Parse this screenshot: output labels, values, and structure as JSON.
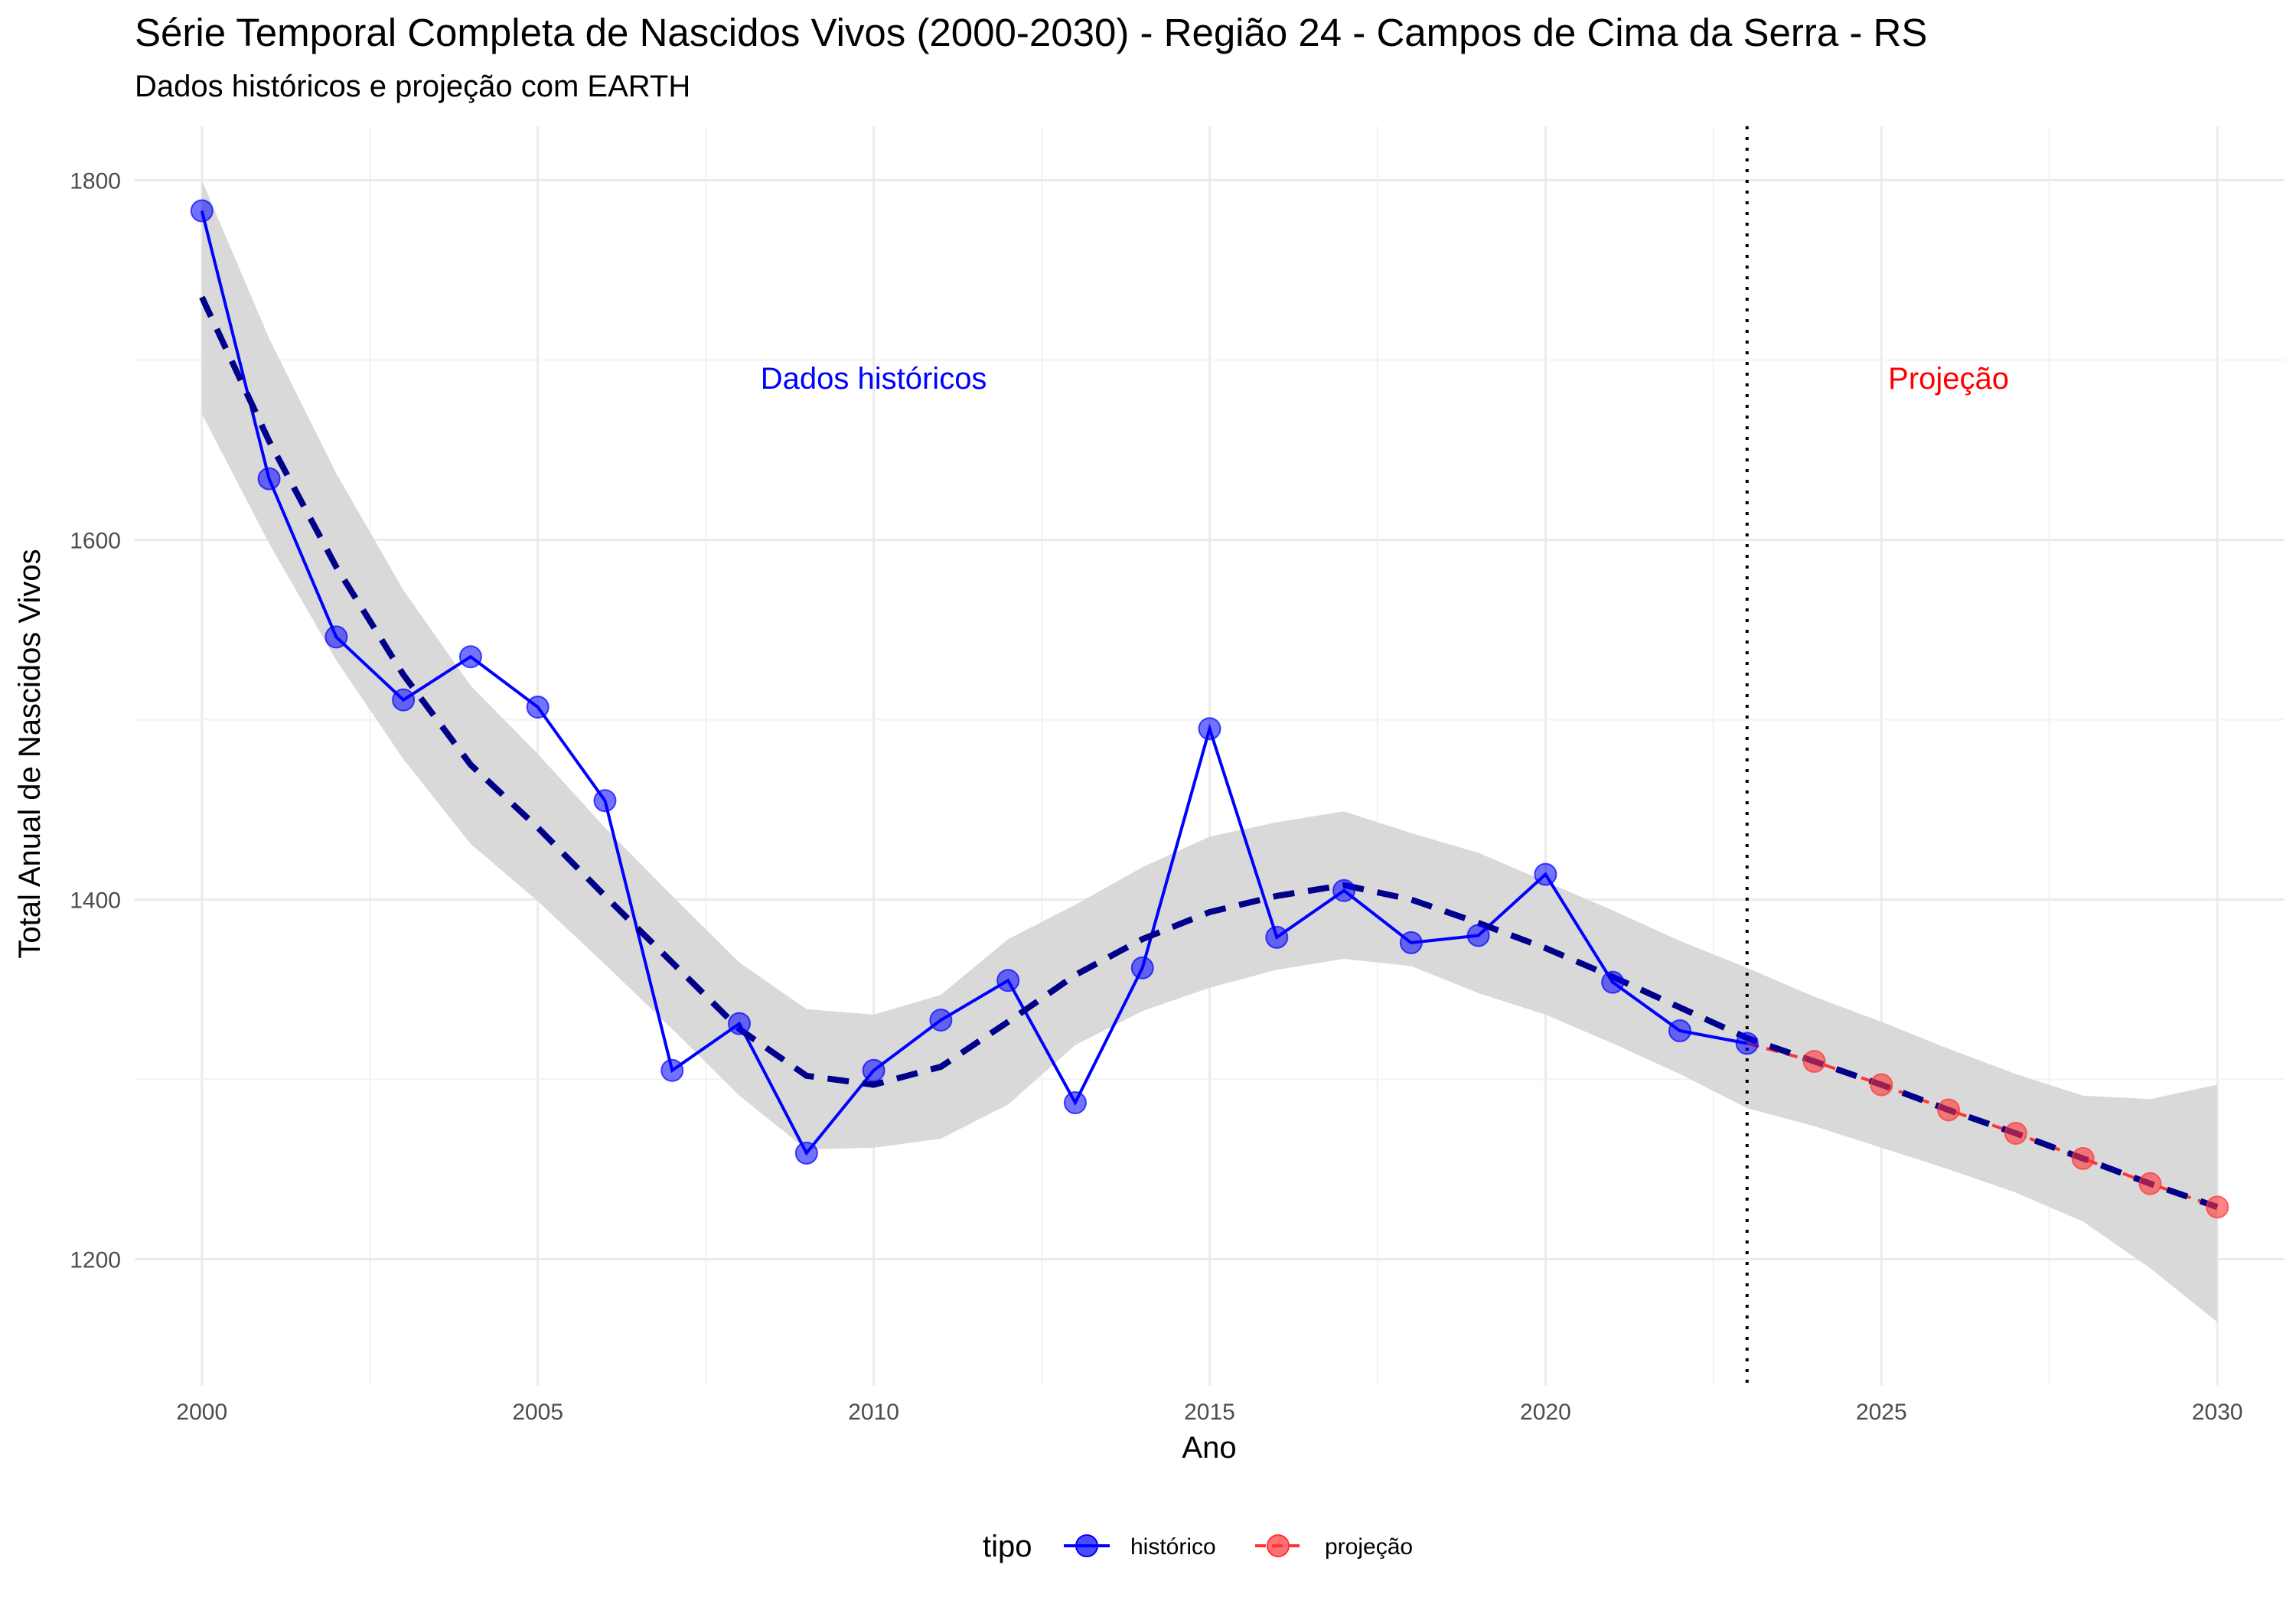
{
  "chart_data": {
    "type": "line",
    "title": "Série Temporal Completa de Nascidos Vivos (2000-2030) -  Região 24 - Campos de Cima da Serra - RS",
    "subtitle": "Dados históricos e projeção com EARTH",
    "xlabel": "Ano",
    "ylabel": "Total Anual de Nascidos Vivos",
    "xlim": [
      1999,
      2031
    ],
    "ylim": [
      1130,
      1830
    ],
    "x_ticks": [
      2000,
      2005,
      2010,
      2015,
      2020,
      2025,
      2030
    ],
    "y_ticks": [
      1200,
      1400,
      1600,
      1800
    ],
    "grid": true,
    "legend": {
      "title": "tipo",
      "position": "bottom",
      "items": [
        {
          "label": "histórico",
          "color": "#0000ff"
        },
        {
          "label": "projeção",
          "color": "#ff3333"
        }
      ]
    },
    "series": [
      {
        "name": "histórico",
        "color": "#0000ff",
        "x": [
          2000,
          2001,
          2002,
          2003,
          2004,
          2005,
          2006,
          2007,
          2008,
          2009,
          2010,
          2011,
          2012,
          2013,
          2014,
          2015,
          2016,
          2017,
          2018,
          2019,
          2020,
          2021,
          2022,
          2023
        ],
        "y": [
          1783,
          1634,
          1546,
          1511,
          1535,
          1507,
          1455,
          1305,
          1331,
          1259,
          1305,
          1333,
          1355,
          1287,
          1362,
          1495,
          1379,
          1405,
          1376,
          1380,
          1414,
          1354,
          1327,
          1320
        ]
      },
      {
        "name": "projeção",
        "color": "#ff3333",
        "x": [
          2023,
          2024,
          2025,
          2026,
          2027,
          2028,
          2029,
          2030
        ],
        "y": [
          1320,
          1310,
          1297,
          1283,
          1270,
          1256,
          1242,
          1229
        ]
      }
    ],
    "trend": {
      "color": "#00008b",
      "x": [
        2000,
        2001,
        2002,
        2003,
        2004,
        2005,
        2006,
        2007,
        2008,
        2009,
        2010,
        2011,
        2012,
        2013,
        2014,
        2015,
        2016,
        2017,
        2018,
        2019,
        2020,
        2021,
        2022,
        2023,
        2024,
        2025,
        2026,
        2027,
        2028,
        2029,
        2030
      ],
      "y": [
        1735,
        1655,
        1585,
        1525,
        1475,
        1440,
        1402,
        1365,
        1328,
        1302,
        1297,
        1307,
        1332,
        1358,
        1378,
        1393,
        1402,
        1408,
        1400,
        1387,
        1373,
        1357,
        1340,
        1323,
        1310,
        1297,
        1283,
        1270,
        1256,
        1242,
        1229
      ],
      "band_upper": [
        1800,
        1712,
        1637,
        1572,
        1519,
        1481,
        1440,
        1402,
        1365,
        1339,
        1336,
        1347,
        1378,
        1397,
        1418,
        1435,
        1443,
        1449,
        1437,
        1426,
        1410,
        1394,
        1377,
        1362,
        1346,
        1332,
        1317,
        1303,
        1291,
        1289,
        1297
      ],
      "band_lower": [
        1670,
        1598,
        1533,
        1478,
        1431,
        1399,
        1364,
        1328,
        1291,
        1261,
        1262,
        1267,
        1286,
        1319,
        1338,
        1351,
        1361,
        1367,
        1363,
        1348,
        1336,
        1320,
        1303,
        1284,
        1274,
        1262,
        1250,
        1237,
        1221,
        1195,
        1165
      ]
    },
    "vline": {
      "x": 2023,
      "style": "dotted"
    },
    "annotations": [
      {
        "x": 2010,
        "y": 1690,
        "text": "Dados históricos",
        "color": "#0000ff"
      },
      {
        "x": 2026,
        "y": 1690,
        "text": "Projeção",
        "color": "#ff0000"
      }
    ]
  }
}
